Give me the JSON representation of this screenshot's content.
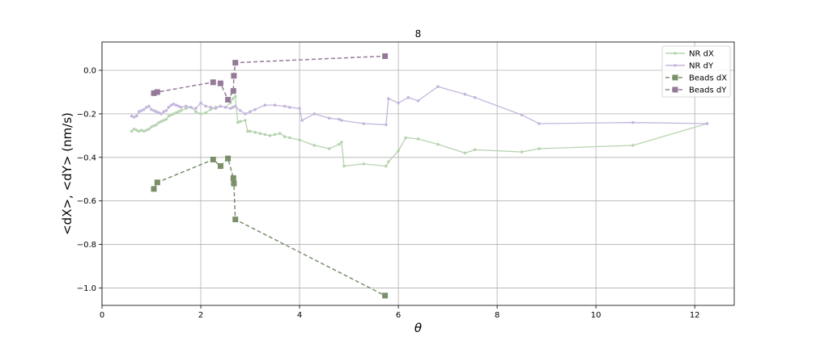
{
  "chart_data": {
    "type": "line",
    "title": "8",
    "xlabel": "θ",
    "ylabel": "<dX>, <dY> (nm/s)",
    "xlim": [
      0,
      12.8
    ],
    "ylim": [
      -1.08,
      0.13
    ],
    "xticks": [
      0,
      2,
      4,
      6,
      8,
      10,
      12
    ],
    "yticks": [
      -1.0,
      -0.8,
      -0.6,
      -0.4,
      -0.2,
      0.0
    ],
    "xtick_labels": [
      "0",
      "2",
      "4",
      "6",
      "8",
      "10",
      "12"
    ],
    "ytick_labels": [
      "−1.0",
      "−0.8",
      "−0.6",
      "−0.4",
      "−0.2",
      "0.0"
    ],
    "grid": true,
    "legend_position": "top-right",
    "series": [
      {
        "name": "NR dX",
        "color": "#b7d3b0",
        "style": "solid",
        "marker": "dot",
        "x": [
          0.6,
          0.65,
          0.7,
          0.75,
          0.8,
          0.85,
          0.9,
          0.95,
          1.0,
          1.05,
          1.1,
          1.15,
          1.2,
          1.25,
          1.3,
          1.35,
          1.4,
          1.45,
          1.5,
          1.55,
          1.6,
          1.7,
          1.8,
          1.9,
          2.0,
          2.1,
          2.2,
          2.3,
          2.4,
          2.5,
          2.6,
          2.65,
          2.7,
          2.75,
          2.8,
          2.9,
          2.95,
          3.0,
          3.1,
          3.2,
          3.3,
          3.4,
          3.5,
          3.6,
          3.7,
          3.8,
          4.0,
          4.3,
          4.6,
          4.8,
          4.85,
          4.9,
          5.3,
          5.75,
          5.8,
          6.0,
          6.15,
          6.4,
          6.8,
          7.35,
          7.55,
          8.5,
          8.85,
          10.75,
          12.25
        ],
        "y": [
          -0.28,
          -0.27,
          -0.275,
          -0.28,
          -0.275,
          -0.28,
          -0.275,
          -0.27,
          -0.26,
          -0.255,
          -0.25,
          -0.24,
          -0.235,
          -0.23,
          -0.225,
          -0.21,
          -0.205,
          -0.2,
          -0.195,
          -0.19,
          -0.185,
          -0.175,
          -0.17,
          -0.19,
          -0.2,
          -0.195,
          -0.18,
          -0.17,
          -0.165,
          -0.17,
          -0.15,
          -0.13,
          -0.12,
          -0.24,
          -0.235,
          -0.23,
          -0.28,
          -0.28,
          -0.285,
          -0.29,
          -0.295,
          -0.3,
          -0.295,
          -0.29,
          -0.305,
          -0.31,
          -0.32,
          -0.345,
          -0.36,
          -0.34,
          -0.33,
          -0.44,
          -0.43,
          -0.44,
          -0.42,
          -0.37,
          -0.31,
          -0.315,
          -0.34,
          -0.38,
          -0.365,
          -0.375,
          -0.36,
          -0.345,
          -0.245
        ]
      },
      {
        "name": "NR dY",
        "color": "#c4b6dc",
        "style": "solid",
        "marker": "dot",
        "x": [
          0.6,
          0.65,
          0.7,
          0.75,
          0.8,
          0.85,
          0.9,
          0.95,
          1.0,
          1.05,
          1.1,
          1.15,
          1.2,
          1.25,
          1.3,
          1.35,
          1.4,
          1.45,
          1.5,
          1.55,
          1.6,
          1.7,
          1.8,
          1.9,
          2.0,
          2.1,
          2.2,
          2.3,
          2.4,
          2.5,
          2.6,
          2.65,
          2.7,
          2.8,
          2.9,
          3.0,
          3.1,
          3.3,
          3.5,
          3.7,
          3.8,
          4.0,
          4.05,
          4.3,
          4.6,
          4.8,
          4.85,
          5.3,
          5.75,
          5.8,
          6.0,
          6.2,
          6.4,
          6.8,
          7.35,
          7.55,
          8.5,
          8.85,
          10.75,
          12.25
        ],
        "y": [
          -0.21,
          -0.215,
          -0.21,
          -0.19,
          -0.185,
          -0.18,
          -0.17,
          -0.165,
          -0.18,
          -0.185,
          -0.19,
          -0.195,
          -0.2,
          -0.19,
          -0.185,
          -0.17,
          -0.16,
          -0.155,
          -0.16,
          -0.165,
          -0.17,
          -0.165,
          -0.17,
          -0.175,
          -0.15,
          -0.165,
          -0.17,
          -0.175,
          -0.165,
          -0.17,
          -0.175,
          -0.17,
          -0.165,
          -0.185,
          -0.2,
          -0.19,
          -0.18,
          -0.16,
          -0.16,
          -0.165,
          -0.17,
          -0.175,
          -0.23,
          -0.2,
          -0.22,
          -0.225,
          -0.23,
          -0.245,
          -0.25,
          -0.13,
          -0.15,
          -0.125,
          -0.14,
          -0.075,
          -0.11,
          -0.125,
          -0.205,
          -0.245,
          -0.24,
          -0.245
        ]
      },
      {
        "name": "Beads dX",
        "color": "#7a8f6a",
        "style": "dashed",
        "marker": "square",
        "x": [
          1.05,
          1.12,
          2.25,
          2.4,
          2.55,
          2.66,
          2.67,
          2.7,
          5.73
        ],
        "y": [
          -0.545,
          -0.515,
          -0.41,
          -0.44,
          -0.405,
          -0.495,
          -0.52,
          -0.685,
          -1.035
        ]
      },
      {
        "name": "Beads dY",
        "color": "#957a98",
        "style": "dashed",
        "marker": "square",
        "x": [
          1.05,
          1.12,
          2.25,
          2.4,
          2.55,
          2.66,
          2.67,
          2.7,
          5.73
        ],
        "y": [
          -0.105,
          -0.1,
          -0.055,
          -0.06,
          -0.135,
          -0.095,
          -0.025,
          0.035,
          0.065
        ]
      }
    ]
  }
}
